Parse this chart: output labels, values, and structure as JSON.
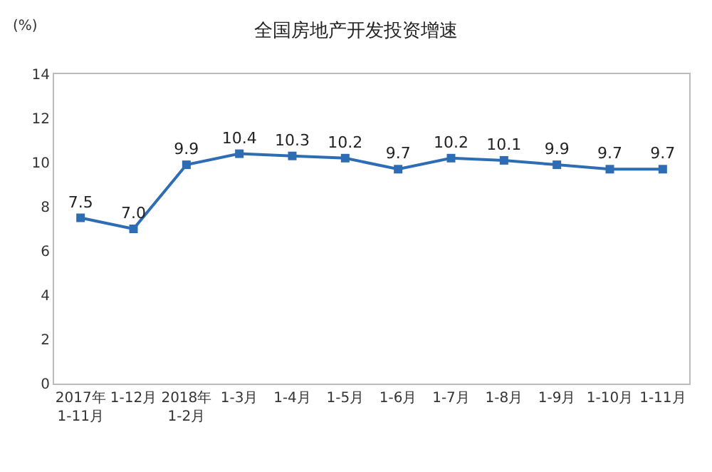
{
  "chart_data": {
    "type": "line",
    "title": "全国房地产开发投资增速",
    "ylabel": "(%)",
    "categories": [
      "2017年\n1-11月",
      "1-12月",
      "2018年\n1-2月",
      "1-3月",
      "1-4月",
      "1-5月",
      "1-6月",
      "1-7月",
      "1-8月",
      "1-9月",
      "1-10月",
      "1-11月"
    ],
    "series": [
      {
        "color": "#2e6db4",
        "values": [
          7.5,
          7.0,
          9.9,
          10.4,
          10.3,
          10.2,
          9.7,
          10.2,
          10.1,
          9.9,
          9.7,
          9.7
        ],
        "value_labels": [
          "7.5",
          "7.0",
          "9.9",
          "10.4",
          "10.3",
          "10.2",
          "9.7",
          "10.2",
          "10.1",
          "9.9",
          "9.7",
          "9.7"
        ]
      }
    ],
    "ylim": [
      0,
      14
    ],
    "yticks": [
      0,
      2,
      4,
      6,
      8,
      10,
      12,
      14
    ],
    "marker": "square"
  }
}
